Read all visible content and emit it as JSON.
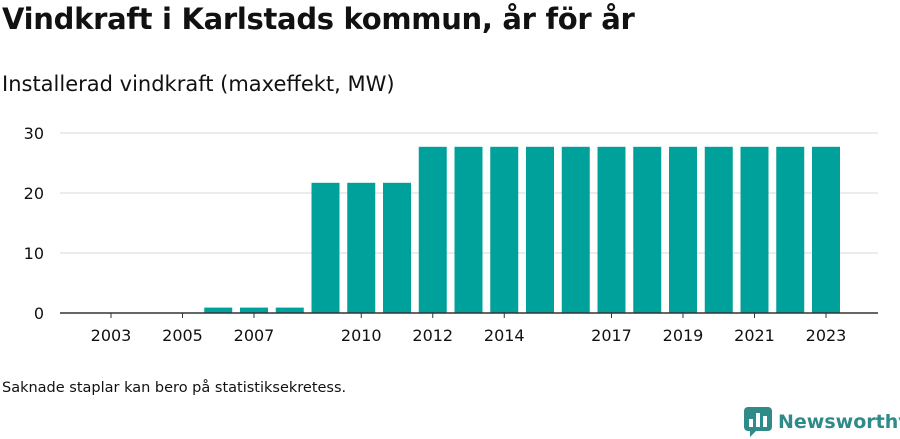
{
  "header": {
    "title": "Vindkraft i Karlstads kommun, år för år",
    "subtitle": "Installerad vindkraft (maxeffekt, MW)"
  },
  "footnote": "Saknade staplar kan bero på statistiksekretess.",
  "brand": {
    "name": "Newsworthy",
    "color": "#2f8a8a",
    "logo_icon": "newsworthy-chart-bubble-icon"
  },
  "colors": {
    "bar": "#00a19a",
    "grid": "#d9d9d9",
    "axis": "#333333"
  },
  "chart_data": {
    "type": "bar",
    "title": "Vindkraft i Karlstads kommun, år för år",
    "subtitle": "Installerad vindkraft (maxeffekt, MW)",
    "categories": [
      2003,
      2004,
      2005,
      2006,
      2007,
      2008,
      2009,
      2010,
      2011,
      2012,
      2013,
      2014,
      2015,
      2016,
      2017,
      2018,
      2019,
      2020,
      2021,
      2022,
      2023
    ],
    "values": [
      0,
      0,
      0,
      0.9,
      0.9,
      0.9,
      21.7,
      21.7,
      21.7,
      27.7,
      27.7,
      27.7,
      27.7,
      27.7,
      27.7,
      27.7,
      27.7,
      27.7,
      27.7,
      27.7,
      27.7
    ],
    "xtick_labels": [
      "2003",
      "2005",
      "2007",
      "2010",
      "2012",
      "2014",
      "2017",
      "2019",
      "2021",
      "2023"
    ],
    "yticks": [
      0,
      10,
      20,
      30
    ],
    "ylim": [
      0,
      30
    ],
    "xlabel": "",
    "ylabel": "",
    "grid": true,
    "legend": "none"
  }
}
